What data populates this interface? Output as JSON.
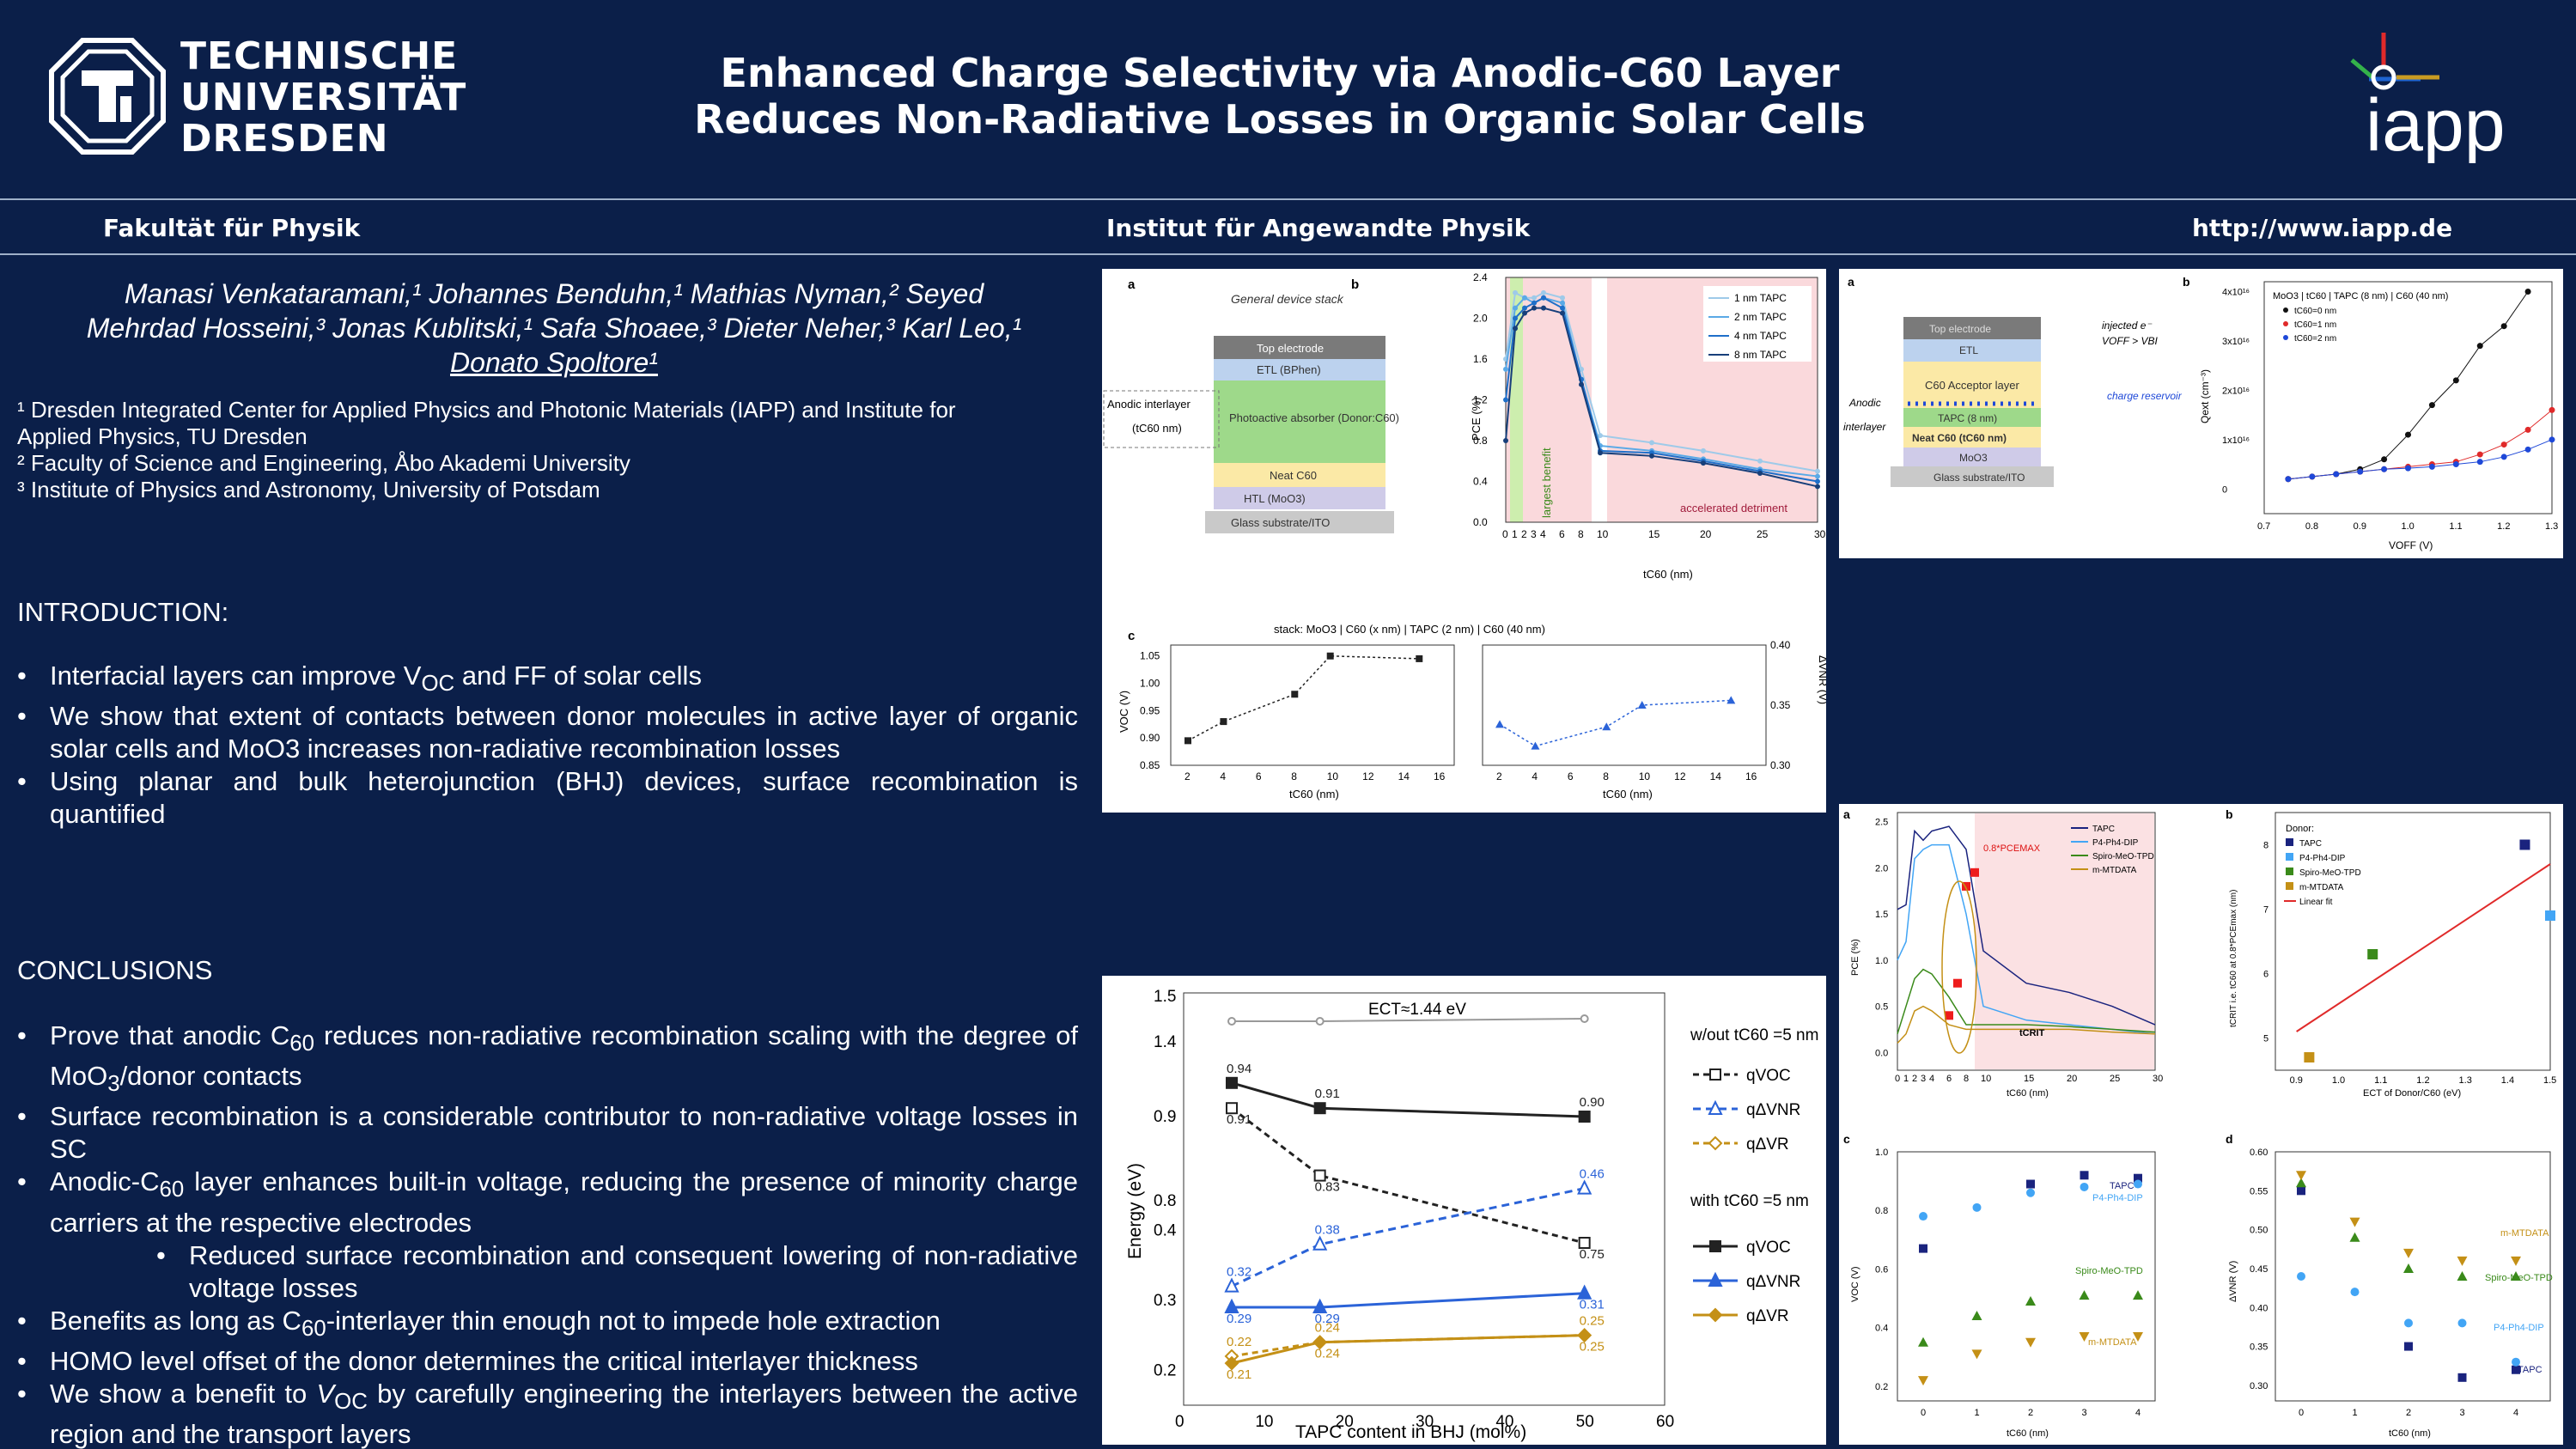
{
  "header": {
    "university_lines": [
      "TECHNISCHE",
      "UNIVERSITÄT",
      "DRESDEN"
    ],
    "title_lines": [
      "Enhanced Charge Selectivity via Anodic-C60 Layer",
      "Reduces Non-Radiative Losses in Organic Solar Cells"
    ],
    "iapp_logo": "iapp"
  },
  "subbar": {
    "faculty": "Fakultät für Physik",
    "institute": "Institut für Angewandte Physik",
    "url": "http://www.iapp.de"
  },
  "authors": {
    "line1": "Manasi Venkataramani,¹ Johannes Benduhn,¹ Mathias Nyman,² Seyed",
    "line2": "Mehrdad Hosseini,³ Jonas Kublitski,¹ Safa Shoaee,³ Dieter Neher,³ Karl Leo,¹",
    "line3": "Donato Spoltore¹"
  },
  "affiliations": [
    "¹ Dresden Integrated Center for Applied Physics and Photonic Materials (IAPP) and Institute for",
    "Applied Physics, TU Dresden",
    "² Faculty of Science and Engineering, Åbo Akademi University",
    "³ Institute of Physics and Astronomy, University of Potsdam"
  ],
  "introduction": {
    "heading": "INTRODUCTION:",
    "bullets": [
      "Interfacial layers can improve V_OC and FF of solar cells",
      "We show that extent of contacts between donor molecules in active layer of organic solar cells and MoO3 increases non-radiative recombination losses",
      "Using planar and bulk heterojunction (BHJ) devices, surface recombination is quantified"
    ]
  },
  "conclusions": {
    "heading": "CONCLUSIONS",
    "bullets": [
      "Prove that anodic C60 reduces non-radiative recombination scaling with the degree of MoO3/donor contacts",
      "Surface recombination is a considerable contributor to non-radiative voltage losses in SC",
      "Anodic-C60 layer enhances built-in voltage, reducing the presence of minority charge carriers at the respective electrodes",
      "Reduced surface recombination and consequent lowering of non-radiative voltage losses",
      "Benefits as long as C60-interlayer thin enough not to impede hole extraction",
      "HOMO level offset of the donor determines the critical interlayer thickness",
      "We show a benefit to V_OC by carefully engineering the interlayers between the active region and the transport layers"
    ]
  },
  "fig1": {
    "a": "a",
    "b": "b",
    "c": "c",
    "stack_title": "General device stack",
    "layers": [
      "Top electrode",
      "ETL (BPhen)",
      "Photoactive absorber (Donor:C60)",
      "Neat C60",
      "HTL (MoO3)",
      "Glass substrate/ITO"
    ],
    "anodic": "Anodic interlayer",
    "anodic2": "(tC60 nm)",
    "legend": [
      "1 nm TAPC",
      "2 nm TAPC",
      "4 nm TAPC",
      "8 nm TAPC"
    ],
    "benefit": "largest benefit",
    "detriment": "accelerated detriment",
    "ylabel": "PCE (%)",
    "xlabel": "tC60 (nm)",
    "c_title": "stack: MoO3 | C60 (x nm) | TAPC (2 nm) | C60 (40 nm)",
    "c_ylabel_left": "VOC (V)",
    "c_ylabel_right": "ΔVNR (V)"
  },
  "fig2": {
    "a": "a",
    "b": "b",
    "layers": [
      "Top electrode",
      "ETL",
      "C60 Acceptor layer",
      "TAPC (8 nm)",
      "Neat C60 (tC60 nm)",
      "MoO3",
      "Glass substrate/ITO"
    ],
    "injected": "injected e⁻",
    "inj2": "VOFF > VBI",
    "reservoir": "charge reservoir",
    "anodic": "Anodic",
    "interlayer": "interlayer",
    "title": "MoO3 | tC60 | TAPC (8 nm) | C60 (40 nm)",
    "legend": [
      "tC60=0 nm",
      "tC60=1 nm",
      "tC60=2 nm"
    ],
    "ylabel": "Qext (cm⁻³)",
    "xlabel": "VOFF (V)"
  },
  "fig3": {
    "legend_title_without": "w/out tC60 =5 nm",
    "legend_title_with": "with tC60 =5 nm",
    "qVOC": "qVOC",
    "qdVNR": "qΔVNR",
    "qdVR": "qΔVR",
    "ect": "ECT≈1.44 eV",
    "xlabel": "TAPC content in BHJ (mol%)",
    "ylabel": "Energy (eV)"
  },
  "fig4": {
    "a": "a",
    "b": "b",
    "c": "c",
    "d": "d",
    "legend": [
      "TAPC",
      "P4-Ph4-DIP",
      "Spiro-MeO-TPD",
      "m-MTDATA"
    ],
    "donor": "Donor:",
    "linear": "Linear fit",
    "pcemax": "0.8*PCEMAX",
    "tcrit": "tCRIT",
    "a_ylabel": "PCE (%)",
    "a_xlabel": "tC60 (nm)",
    "b_xlabel": "ECT of Donor/C60 (eV)",
    "b_ylabel": "tCRIT i.e. tC60 at 0.8*PCEmax (nm)",
    "c_ylabel": "VOC (V)",
    "d_ylabel": "ΔVNR (V)"
  },
  "chart_data": [
    {
      "type": "line",
      "title": "",
      "xlabel": "tC60 (nm)",
      "ylabel": "PCE (%)",
      "x": [
        0,
        1,
        2,
        3,
        4,
        6,
        8,
        10,
        15,
        20,
        25,
        30
      ],
      "ylim": [
        0,
        2.4
      ],
      "series": [
        {
          "name": "1 nm TAPC",
          "values": [
            1.6,
            2.25,
            2.2,
            2.2,
            2.25,
            2.2,
            1.5,
            0.85,
            0.78,
            0.7,
            0.6,
            0.5
          ]
        },
        {
          "name": "2 nm TAPC",
          "values": [
            1.5,
            2.1,
            2.2,
            2.15,
            2.2,
            2.15,
            1.4,
            0.75,
            0.7,
            0.62,
            0.52,
            0.45
          ]
        },
        {
          "name": "4 nm TAPC",
          "values": [
            1.2,
            2.0,
            2.1,
            2.15,
            2.2,
            2.1,
            1.4,
            0.7,
            0.68,
            0.6,
            0.5,
            0.4
          ]
        },
        {
          "name": "8 nm TAPC",
          "values": [
            0.8,
            1.9,
            2.05,
            2.1,
            2.1,
            2.05,
            1.35,
            0.68,
            0.65,
            0.58,
            0.48,
            0.35
          ]
        }
      ]
    },
    {
      "type": "line",
      "title": "stack: MoO3 | C60 (x nm) | TAPC (2 nm) | C60 (40 nm)",
      "xlabel": "tC60 (nm)",
      "ylabel": "VOC (V)",
      "x": [
        2,
        4,
        8,
        10,
        15
      ],
      "ylim": [
        0.85,
        1.05
      ],
      "series": [
        {
          "name": "VOC",
          "values": [
            0.895,
            0.93,
            0.98,
            1.05,
            1.045
          ]
        }
      ]
    },
    {
      "type": "line",
      "title": "",
      "xlabel": "tC60 (nm)",
      "ylabel": "ΔVNR (V)",
      "x": [
        2,
        4,
        8,
        10,
        15
      ],
      "ylim": [
        0.3,
        0.4
      ],
      "series": [
        {
          "name": "ΔVNR",
          "values": [
            0.334,
            0.316,
            0.332,
            0.35,
            0.354
          ]
        }
      ]
    },
    {
      "type": "line",
      "title": "MoO3 | tC60 | TAPC (8 nm) | C60 (40 nm)",
      "xlabel": "VOFF (V)",
      "ylabel": "Qext (cm⁻³)",
      "x": [
        0.75,
        0.8,
        0.85,
        0.9,
        0.95,
        1.0,
        1.05,
        1.1,
        1.15,
        1.2,
        1.25,
        1.3
      ],
      "ylim": [
        -5000000000000000.0,
        4.2e+16
      ],
      "series": [
        {
          "name": "tC60=0 nm",
          "values": [
            2000000000000000.0,
            2500000000000000.0,
            3000000000000000.0,
            4000000000000000.0,
            6000000000000000.0,
            1.1e+16,
            1.7e+16,
            2.2e+16,
            2.9e+16,
            3.3e+16,
            4e+16,
            null
          ]
        },
        {
          "name": "tC60=1 nm",
          "values": [
            2000000000000000.0,
            2500000000000000.0,
            3000000000000000.0,
            3500000000000000.0,
            4000000000000000.0,
            4500000000000000.0,
            5000000000000000.0,
            5500000000000000.0,
            7000000000000000.0,
            9000000000000000.0,
            1.2e+16,
            1.6e+16
          ]
        },
        {
          "name": "tC60=2 nm",
          "values": [
            2000000000000000.0,
            2500000000000000.0,
            3000000000000000.0,
            3500000000000000.0,
            4000000000000000.0,
            4200000000000000.0,
            4500000000000000.0,
            5000000000000000.0,
            5500000000000000.0,
            6500000000000000.0,
            8000000000000000.0,
            1e+16
          ]
        }
      ]
    },
    {
      "type": "line",
      "title": "",
      "xlabel": "TAPC content in BHJ (mol%)",
      "ylabel": "Energy (eV)",
      "x": [
        6,
        17,
        50
      ],
      "series": [
        {
          "name": "w/out qVOC",
          "values": [
            0.91,
            0.83,
            0.75
          ]
        },
        {
          "name": "w/out qΔVNR",
          "values": [
            0.32,
            0.38,
            0.46
          ]
        },
        {
          "name": "w/out qΔVR",
          "values": [
            0.22,
            0.24,
            0.25
          ]
        },
        {
          "name": "with qVOC",
          "values": [
            0.94,
            0.91,
            0.9
          ]
        },
        {
          "name": "with qΔVNR",
          "values": [
            0.29,
            0.29,
            0.31
          ]
        },
        {
          "name": "with qΔVR",
          "values": [
            0.21,
            0.24,
            0.25
          ]
        }
      ]
    },
    {
      "type": "line",
      "title": "",
      "xlabel": "tC60 (nm)",
      "ylabel": "PCE (%)",
      "x": [
        0,
        1,
        2,
        3,
        4,
        6,
        8,
        10,
        15,
        20,
        25,
        30
      ],
      "ylim": [
        -0.1,
        2.6
      ],
      "series": [
        {
          "name": "TAPC",
          "values": [
            1.55,
            1.6,
            2.4,
            2.3,
            2.4,
            2.45,
            2.2,
            1.1,
            0.75,
            0.65,
            0.5,
            0.3
          ]
        },
        {
          "name": "P4-Ph4-DIP",
          "values": [
            1.0,
            1.2,
            2.1,
            2.2,
            2.25,
            2.25,
            1.5,
            0.5,
            0.35,
            0.3,
            0.25,
            0.2
          ]
        },
        {
          "name": "Spiro-MeO-TPD",
          "values": [
            0.2,
            0.5,
            0.8,
            0.9,
            0.85,
            0.6,
            0.3,
            0.3,
            0.3,
            0.28,
            0.25,
            0.22
          ]
        },
        {
          "name": "m-MTDATA",
          "values": [
            0.1,
            0.2,
            0.45,
            0.5,
            0.45,
            0.3,
            0.25,
            0.25,
            0.25,
            0.25,
            0.22,
            0.2
          ]
        }
      ]
    },
    {
      "type": "scatter",
      "title": "",
      "xlabel": "ECT of Donor/C60 (eV)",
      "ylabel": "tCRIT (nm)",
      "xlim": [
        0.85,
        1.5
      ],
      "ylim": [
        4.5,
        8.5
      ],
      "series": [
        {
          "name": "TAPC",
          "x": [
            1.44
          ],
          "y": [
            8
          ]
        },
        {
          "name": "P4-Ph4-DIP",
          "x": [
            1.5
          ],
          "y": [
            6.9
          ]
        },
        {
          "name": "Spiro-MeO-TPD",
          "x": [
            1.08
          ],
          "y": [
            6.3
          ]
        },
        {
          "name": "m-MTDATA",
          "x": [
            0.93
          ],
          "y": [
            4.7
          ]
        }
      ]
    },
    {
      "type": "scatter",
      "title": "",
      "xlabel": "tC60 (nm)",
      "ylabel": "VOC (V)",
      "x": [
        0,
        1,
        2,
        3,
        4
      ],
      "ylim": [
        0.2,
        1.0
      ],
      "series": [
        {
          "name": "TAPC",
          "values": [
            0.67,
            null,
            0.89,
            0.92,
            0.91
          ]
        },
        {
          "name": "P4-Ph4-DIP",
          "values": [
            0.78,
            0.81,
            0.86,
            0.88,
            0.89
          ]
        },
        {
          "name": "Spiro-MeO-TPD",
          "values": [
            0.35,
            0.44,
            0.49,
            0.51,
            0.51
          ]
        },
        {
          "name": "m-MTDATA",
          "values": [
            0.22,
            0.31,
            0.35,
            0.37,
            0.37
          ]
        }
      ]
    },
    {
      "type": "scatter",
      "title": "",
      "xlabel": "tC60 (nm)",
      "ylabel": "ΔVNR (V)",
      "x": [
        0,
        1,
        2,
        3,
        4
      ],
      "ylim": [
        0.28,
        0.6
      ],
      "series": [
        {
          "name": "TAPC",
          "values": [
            0.55,
            null,
            0.35,
            0.31,
            0.32
          ]
        },
        {
          "name": "P4-Ph4-DIP",
          "values": [
            0.44,
            0.42,
            0.38,
            0.38,
            0.33
          ]
        },
        {
          "name": "Spiro-MeO-TPD",
          "values": [
            0.56,
            0.49,
            0.45,
            0.44,
            0.44
          ]
        },
        {
          "name": "m-MTDATA",
          "values": [
            0.57,
            0.51,
            0.47,
            0.46,
            0.46
          ]
        }
      ]
    }
  ]
}
